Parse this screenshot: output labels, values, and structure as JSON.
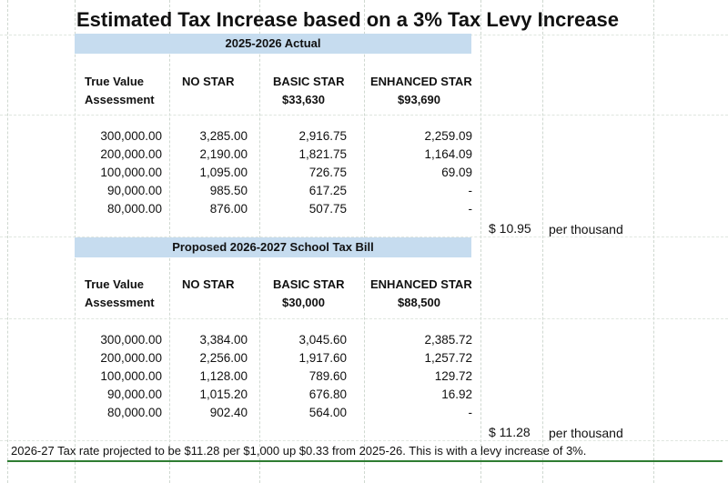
{
  "title": "Estimated Tax Increase based on a 3% Tax Levy Increase",
  "section1": {
    "label": "2025-2026 Actual",
    "headers": {
      "col1_line1": "True Value",
      "col1_line2": "Assessment",
      "col2": "NO STAR",
      "col3_line1": "BASIC STAR",
      "col3_line2": "$33,630",
      "col4_line1": "ENHANCED STAR",
      "col4_line2": "$93,690"
    },
    "rows": [
      [
        "300,000.00",
        "3,285.00",
        "2,916.75",
        "2,259.09"
      ],
      [
        "200,000.00",
        "2,190.00",
        "1,821.75",
        "1,164.09"
      ],
      [
        "100,000.00",
        "1,095.00",
        "726.75",
        "69.09"
      ],
      [
        "90,000.00",
        "985.50",
        "617.25",
        "-"
      ],
      [
        "80,000.00",
        "876.00",
        "507.75",
        "-"
      ]
    ],
    "rate": "$ 10.95",
    "rate_label": "per thousand"
  },
  "section2": {
    "label": "Proposed 2026-2027 School Tax Bill",
    "headers": {
      "col1_line1": "True Value",
      "col1_line2": "Assessment",
      "col2": "NO STAR",
      "col3_line1": "BASIC STAR",
      "col3_line2": "$30,000",
      "col4_line1": "ENHANCED STAR",
      "col4_line2": "$88,500"
    },
    "rows": [
      [
        "300,000.00",
        "3,384.00",
        "3,045.60",
        "2,385.72"
      ],
      [
        "200,000.00",
        "2,256.00",
        "1,917.60",
        "1,257.72"
      ],
      [
        "100,000.00",
        "1,128.00",
        "789.60",
        "129.72"
      ],
      [
        "90,000.00",
        "1,015.20",
        "676.80",
        "16.92"
      ],
      [
        "80,000.00",
        "902.40",
        "564.00",
        "-"
      ]
    ],
    "rate": "$ 11.28",
    "rate_label": "per thousand"
  },
  "footer": "2026-27 Tax rate projected to be $11.28 per $1,000 up $0.33 from 2025-26.  This is with a levy increase of 3%."
}
